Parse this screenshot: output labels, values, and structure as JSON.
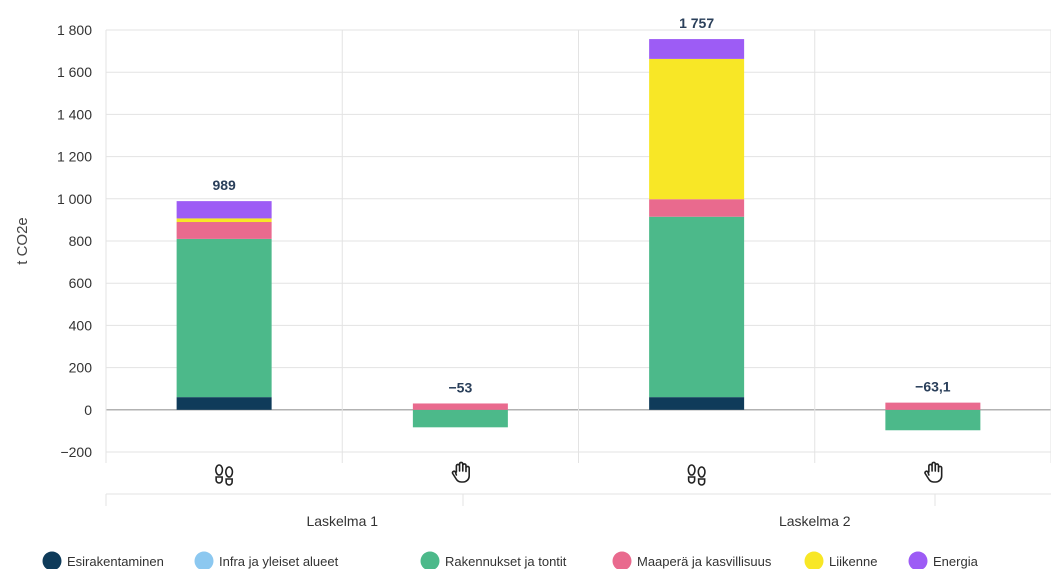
{
  "chart_data": {
    "type": "bar",
    "stacked": true,
    "ylabel": "t CO2e",
    "ylim": [
      -200,
      1800
    ],
    "yticks": [
      {
        "value": -200,
        "label": "−200"
      },
      {
        "value": 0,
        "label": "0"
      },
      {
        "value": 200,
        "label": "200"
      },
      {
        "value": 400,
        "label": "400"
      },
      {
        "value": 600,
        "label": "600"
      },
      {
        "value": 800,
        "label": "800"
      },
      {
        "value": 1000,
        "label": "1 000"
      },
      {
        "value": 1200,
        "label": "1 200"
      },
      {
        "value": 1400,
        "label": "1 400"
      },
      {
        "value": 1600,
        "label": "1 600"
      },
      {
        "value": 1800,
        "label": "1 800"
      }
    ],
    "grid": true,
    "legend_position": "bottom",
    "categories": [
      {
        "icon": "footprints-icon",
        "group": "Laskelma 1"
      },
      {
        "icon": "hand-icon",
        "group": "Laskelma 1"
      },
      {
        "icon": "footprints-icon",
        "group": "Laskelma 2"
      },
      {
        "icon": "hand-icon",
        "group": "Laskelma 2"
      }
    ],
    "groups": [
      "Laskelma 1",
      "Laskelma 2"
    ],
    "totals": [
      "989",
      "−53",
      "1 757",
      "−63,1"
    ],
    "series": [
      {
        "name": "Esirakentaminen",
        "color": "#0f3b5a",
        "values": [
          60,
          0,
          60,
          0
        ]
      },
      {
        "name": "Infra ja yleiset alueet",
        "color": "#8cc8f0",
        "values": [
          0,
          0,
          0,
          0
        ]
      },
      {
        "name": "Rakennukset ja tontit",
        "color": "#4cb98a",
        "values": [
          750,
          -83,
          855,
          -97
        ]
      },
      {
        "name": "Maaperä ja kasvillisuus",
        "color": "#e96a8e",
        "values": [
          80,
          30,
          83,
          34
        ]
      },
      {
        "name": "Liikenne",
        "color": "#f8e726",
        "values": [
          17,
          0,
          665,
          0
        ]
      },
      {
        "name": "Energia",
        "color": "#9d5cf5",
        "values": [
          82,
          0,
          94,
          0
        ]
      }
    ]
  }
}
